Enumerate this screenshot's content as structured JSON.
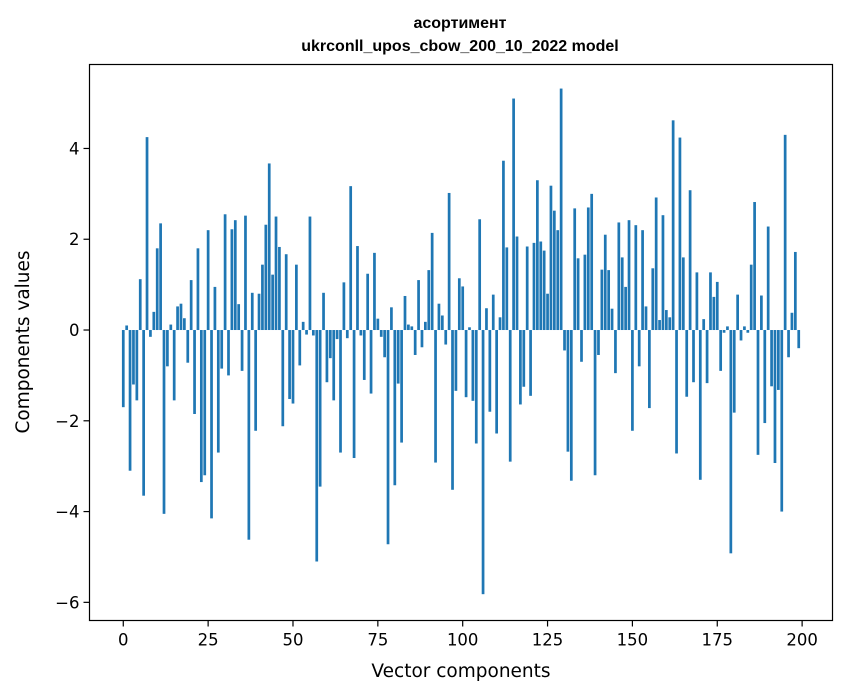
{
  "chart_data": {
    "type": "bar",
    "title": "асортимент",
    "subtitle": "ukrconll_upos_cbow_200_10_2022 model",
    "xlabel": "Vector components",
    "ylabel": "Components values",
    "xlim": [
      -9.95,
      208.95
    ],
    "ylim": [
      -6.4,
      5.85
    ],
    "xticks": [
      0,
      25,
      50,
      75,
      100,
      125,
      150,
      175,
      200
    ],
    "yticks": [
      -6,
      -4,
      -2,
      0,
      2,
      4
    ],
    "bar_color": "#1f77b4",
    "grid": false,
    "x": [
      0,
      1,
      2,
      3,
      4,
      5,
      6,
      7,
      8,
      9,
      10,
      11,
      12,
      13,
      14,
      15,
      16,
      17,
      18,
      19,
      20,
      21,
      22,
      23,
      24,
      25,
      26,
      27,
      28,
      29,
      30,
      31,
      32,
      33,
      34,
      35,
      36,
      37,
      38,
      39,
      40,
      41,
      42,
      43,
      44,
      45,
      46,
      47,
      48,
      49,
      50,
      51,
      52,
      53,
      54,
      55,
      56,
      57,
      58,
      59,
      60,
      61,
      62,
      63,
      64,
      65,
      66,
      67,
      68,
      69,
      70,
      71,
      72,
      73,
      74,
      75,
      76,
      77,
      78,
      79,
      80,
      81,
      82,
      83,
      84,
      85,
      86,
      87,
      88,
      89,
      90,
      91,
      92,
      93,
      94,
      95,
      96,
      97,
      98,
      99,
      100,
      101,
      102,
      103,
      104,
      105,
      106,
      107,
      108,
      109,
      110,
      111,
      112,
      113,
      114,
      115,
      116,
      117,
      118,
      119,
      120,
      121,
      122,
      123,
      124,
      125,
      126,
      127,
      128,
      129,
      130,
      131,
      132,
      133,
      134,
      135,
      136,
      137,
      138,
      139,
      140,
      141,
      142,
      143,
      144,
      145,
      146,
      147,
      148,
      149,
      150,
      151,
      152,
      153,
      154,
      155,
      156,
      157,
      158,
      159,
      160,
      161,
      162,
      163,
      164,
      165,
      166,
      167,
      168,
      169,
      170,
      171,
      172,
      173,
      174,
      175,
      176,
      177,
      178,
      179,
      180,
      181,
      182,
      183,
      184,
      185,
      186,
      187,
      188,
      189,
      190,
      191,
      192,
      193,
      194,
      195,
      196,
      197,
      198,
      199
    ],
    "values": [
      -1.7,
      0.1,
      -3.1,
      -1.2,
      -1.55,
      1.12,
      -3.65,
      4.25,
      -0.15,
      0.4,
      1.8,
      2.35,
      -4.05,
      -0.8,
      0.12,
      -1.55,
      0.52,
      0.58,
      0.26,
      -0.72,
      1.1,
      -1.85,
      1.8,
      -3.35,
      -3.2,
      2.2,
      -4.15,
      0.95,
      -2.7,
      -0.85,
      2.55,
      -1.0,
      2.22,
      2.42,
      0.57,
      -0.9,
      2.52,
      -4.62,
      0.82,
      -2.22,
      0.8,
      1.44,
      2.32,
      3.67,
      1.22,
      2.5,
      1.83,
      -2.12,
      1.67,
      -1.52,
      -1.62,
      1.44,
      -0.78,
      0.18,
      -0.1,
      2.5,
      -0.12,
      -5.1,
      -3.45,
      0.82,
      -1.15,
      -0.62,
      -1.55,
      -0.2,
      -2.7,
      1.05,
      -0.18,
      3.17,
      -2.82,
      1.85,
      -0.12,
      -1.1,
      1.24,
      -1.4,
      1.7,
      0.25,
      -0.15,
      -0.6,
      -4.72,
      0.5,
      -3.42,
      -1.18,
      -2.48,
      0.75,
      0.12,
      0.08,
      -0.55,
      1.1,
      -0.38,
      0.18,
      1.32,
      2.14,
      -2.92,
      0.58,
      0.32,
      -0.32,
      3.02,
      -3.52,
      -1.34,
      1.14,
      0.96,
      -1.48,
      0.06,
      -1.56,
      -2.5,
      2.44,
      -5.82,
      0.48,
      -1.8,
      0.78,
      -2.28,
      0.28,
      3.73,
      1.82,
      -2.9,
      5.1,
      2.06,
      -1.64,
      -1.25,
      1.84,
      -1.45,
      1.92,
      3.3,
      1.95,
      1.75,
      0.8,
      3.18,
      2.63,
      2.2,
      5.32,
      -0.45,
      -2.68,
      -3.32,
      2.68,
      1.58,
      -0.7,
      1.66,
      2.7,
      3.0,
      -3.2,
      -0.55,
      1.33,
      2.1,
      1.32,
      0.47,
      -0.95,
      2.37,
      1.6,
      0.95,
      2.42,
      -2.22,
      2.31,
      -0.8,
      2.2,
      0.52,
      -1.72,
      1.36,
      2.92,
      0.22,
      2.53,
      0.44,
      0.28,
      4.62,
      -2.72,
      4.24,
      1.6,
      -1.47,
      3.08,
      -1.15,
      1.27,
      -3.3,
      0.24,
      -1.17,
      1.27,
      0.73,
      1.06,
      -0.9,
      -0.06,
      0.08,
      -4.92,
      -1.82,
      0.78,
      -0.23,
      0.08,
      -0.06,
      1.44,
      2.82,
      -2.75,
      0.76,
      -2.05,
      2.28,
      -1.24,
      -2.93,
      -1.32,
      -4.0,
      4.3,
      -0.6,
      0.38,
      1.72,
      -0.4
    ]
  }
}
